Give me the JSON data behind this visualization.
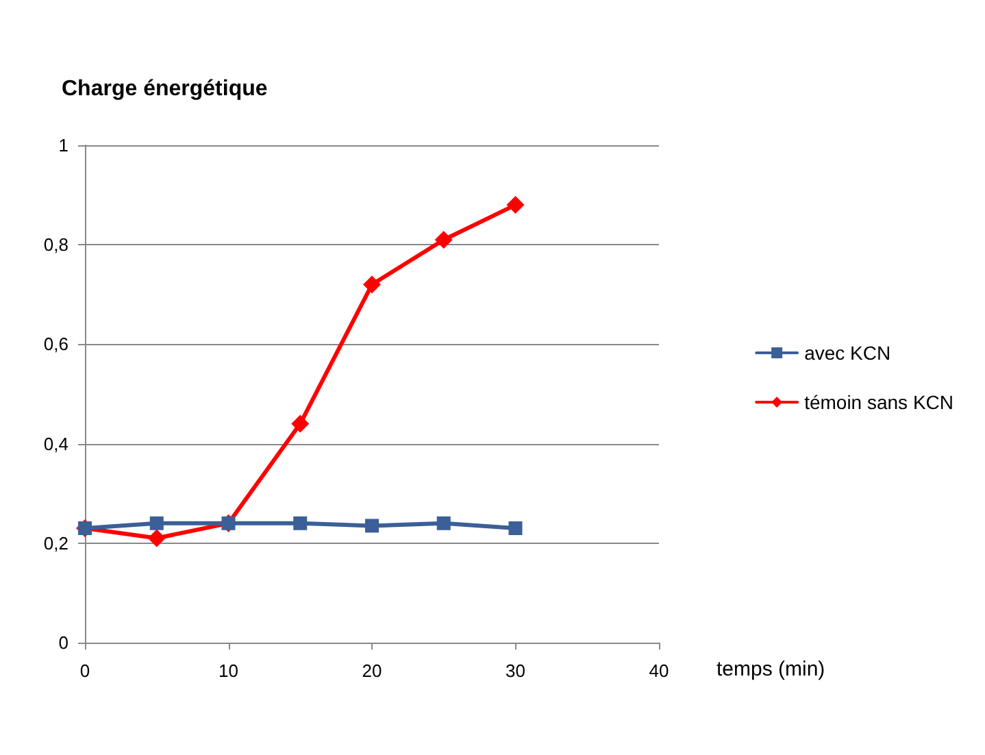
{
  "chart_data": {
    "type": "line",
    "title": "Charge énergétique",
    "xlabel": "temps (min)",
    "x": [
      0,
      5,
      10,
      15,
      20,
      25,
      30
    ],
    "series": [
      {
        "name": "avec KCN",
        "color": "#3b5f97",
        "marker": "square",
        "values": [
          0.23,
          0.24,
          0.24,
          0.24,
          0.235,
          0.24,
          0.23
        ]
      },
      {
        "name": "témoin sans KCN",
        "color": "#ff0000",
        "marker": "diamond",
        "values": [
          0.23,
          0.21,
          0.24,
          0.44,
          0.72,
          0.81,
          0.88
        ]
      }
    ],
    "xlim": [
      0,
      40
    ],
    "xticks": [
      0,
      10,
      20,
      30,
      40
    ],
    "ylim": [
      0,
      1
    ],
    "yticks": [
      0,
      {
        "value": 0.2,
        "label": "0,2"
      },
      {
        "value": 0.4,
        "label": "0,4"
      },
      {
        "value": 0.6,
        "label": "0,6"
      },
      {
        "value": 0.8,
        "label": "0,8"
      },
      1
    ],
    "grid": "y",
    "legend": "right"
  }
}
